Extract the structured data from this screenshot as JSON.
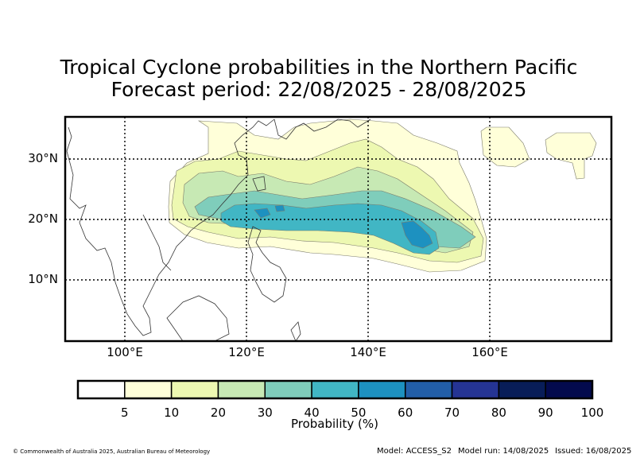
{
  "title_line1": "Tropical Cyclone probabilities in the Northern Pacific",
  "title_line2": "Forecast period: 22/08/2025 - 28/08/2025",
  "lat_labels": [
    "30°N",
    "20°N",
    "10°N"
  ],
  "lon_labels": [
    "100°E",
    "120°E",
    "140°E",
    "160°E"
  ],
  "gridlines": "dotted",
  "colorbar": {
    "title": "Probability (%)",
    "tick_labels": [
      "5",
      "10",
      "20",
      "30",
      "40",
      "50",
      "60",
      "70",
      "80",
      "90",
      "100"
    ],
    "levels": [
      0,
      5,
      10,
      20,
      30,
      40,
      50,
      60,
      70,
      80,
      90,
      100
    ],
    "colors": [
      "#ffffff",
      "#ffffd9",
      "#edf8b1",
      "#c7e9b4",
      "#7fcdbb",
      "#41b6c4",
      "#1d91c0",
      "#225ea8",
      "#253494",
      "#081d58",
      "#030a4d"
    ]
  },
  "footer": {
    "copyright": "© Commonwealth of Australia 2025, Australian Bureau of Meteorology",
    "model": "Model: ACCESS_S2",
    "model_run": "Model run: 14/08/2025",
    "issued": "Issued: 16/08/2025"
  },
  "map_extent": {
    "lon_min": 90,
    "lon_max": 180,
    "lat_min": 0,
    "lat_max": 37
  },
  "probability_field": {
    "levels_shown": [
      "5-10%",
      "10-20%",
      "20-30%",
      "30-40%",
      "40-50%",
      "50-60%"
    ],
    "max_probability_region": "east of Taiwan, around 15-20°N 140-150°E"
  }
}
